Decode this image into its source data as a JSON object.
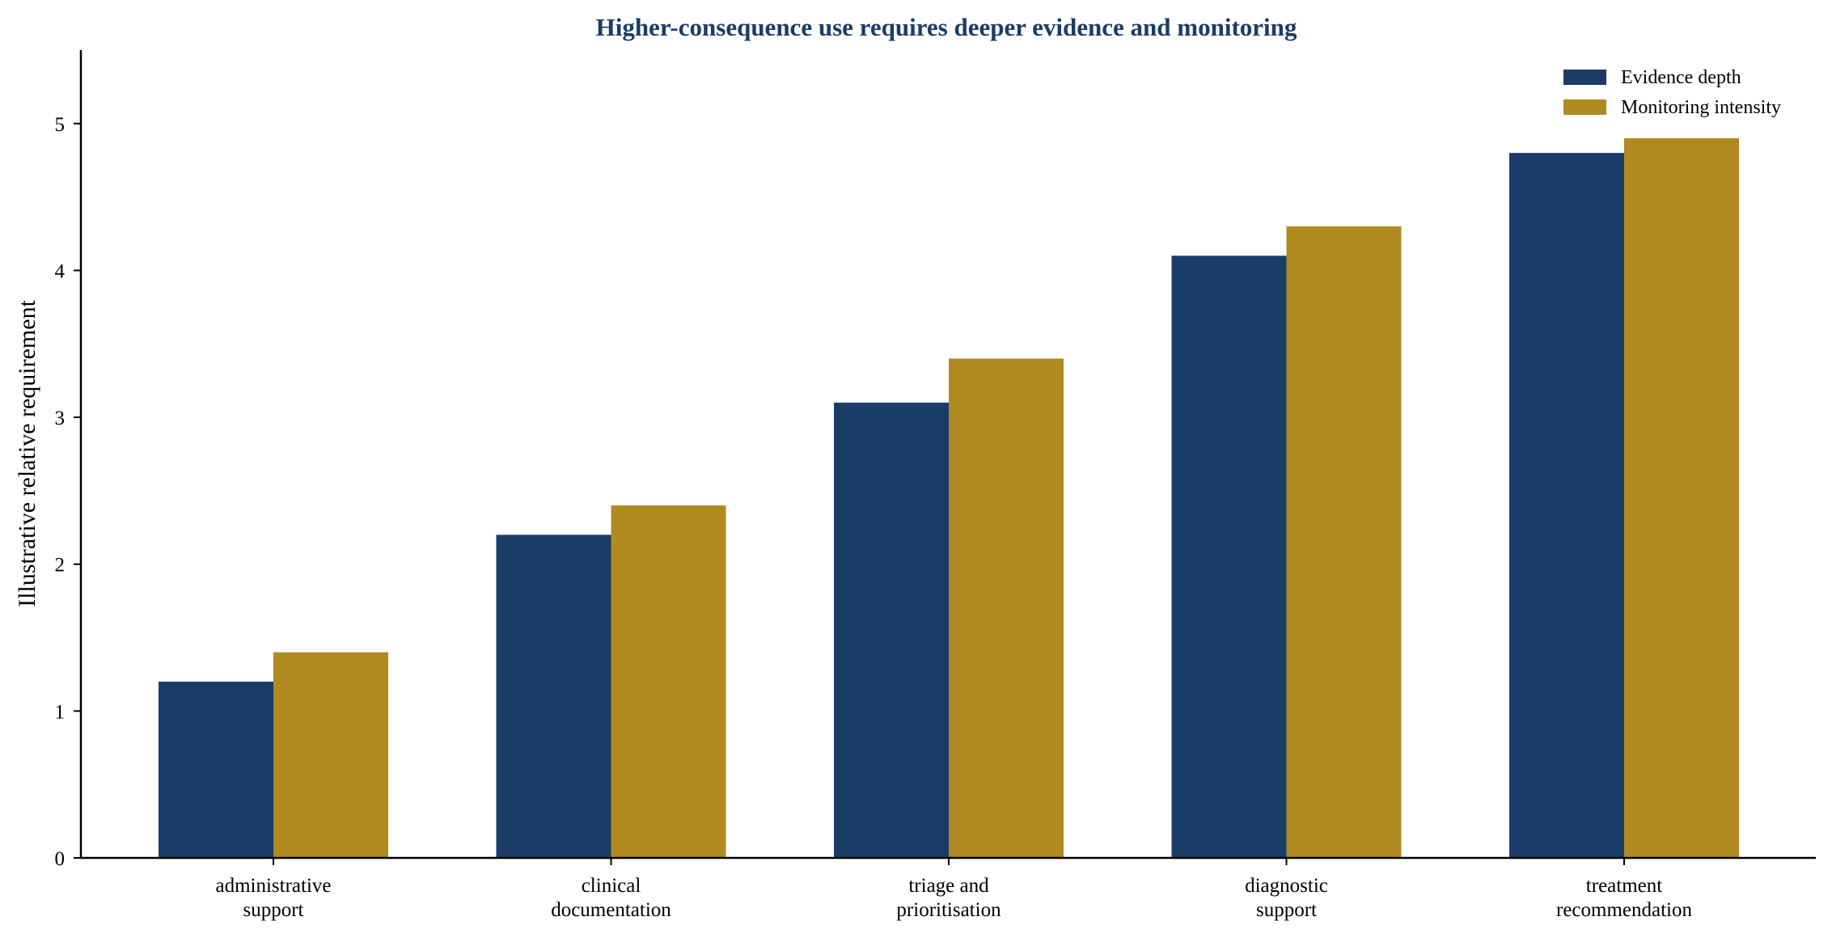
{
  "chart_data": {
    "type": "bar",
    "title": "Higher-consequence use requires deeper evidence and monitoring",
    "xlabel": "",
    "ylabel": "Illustrative relative requirement",
    "categories": [
      [
        "administrative",
        "support"
      ],
      [
        "clinical",
        "documentation"
      ],
      [
        "triage and",
        "prioritisation"
      ],
      [
        "diagnostic",
        "support"
      ],
      [
        "treatment",
        "recommendation"
      ]
    ],
    "series": [
      {
        "name": "Evidence depth",
        "color": "#1a3d68",
        "values": [
          1.2,
          2.2,
          3.1,
          4.1,
          4.8
        ]
      },
      {
        "name": "Monitoring intensity",
        "color": "#b28a22",
        "values": [
          1.4,
          2.4,
          3.4,
          4.3,
          4.9
        ]
      }
    ],
    "ylim": [
      0,
      5.5
    ],
    "yticks": [
      0,
      1,
      2,
      3,
      4,
      5
    ],
    "grid": false,
    "legend": "top-right",
    "title_color": "#1a3d68"
  }
}
